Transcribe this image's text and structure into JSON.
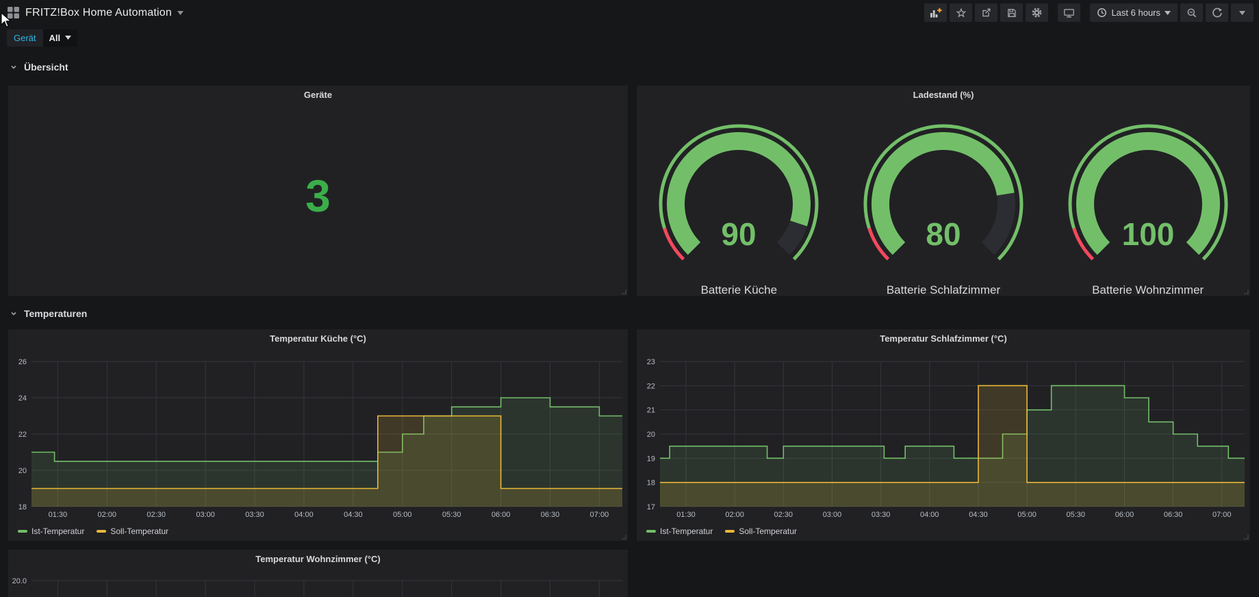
{
  "colors": {
    "green": "#73BF69",
    "red": "#F2495C",
    "yellow": "#EAB839",
    "stat_green": "#3BAD49",
    "variable_teal": "#33b5e5",
    "plus_orange": "#F5A32E",
    "panel_bg": "#212124",
    "page_bg": "#161719"
  },
  "navbar": {
    "title": "FRITZ!Box Home Automation",
    "time_range": "Last 6 hours",
    "icons": [
      "grid",
      "add-panel",
      "star",
      "share",
      "save",
      "settings",
      "tv",
      "clock",
      "zoom-out",
      "refresh",
      "dropdown-caret"
    ]
  },
  "variables": {
    "label": "Gerät",
    "value": "All"
  },
  "rows": [
    {
      "label": "Übersicht"
    },
    {
      "label": "Temperaturen"
    }
  ],
  "chart_data": [
    {
      "id": "geraete",
      "type": "stat",
      "title": "Geräte",
      "value": 3,
      "color": "#3BAD49"
    },
    {
      "id": "ladestand",
      "type": "gauge",
      "title": "Ladestand (%)",
      "min": 0,
      "max": 100,
      "threshold_red_until": 10,
      "gauge_color": "#73BF69",
      "threshold_color": "#F2495C",
      "gauges": [
        {
          "label": "Batterie Küche",
          "value": 90
        },
        {
          "label": "Batterie Schlafzimmer",
          "value": 80
        },
        {
          "label": "Batterie Wohnzimmer",
          "value": 100
        }
      ]
    },
    {
      "id": "kueche",
      "type": "line",
      "interpolation": "step-after",
      "title": "Temperatur Küche (°C)",
      "x_minutes_domain": [
        74,
        434
      ],
      "xticks": [
        {
          "t": 90,
          "label": "01:30"
        },
        {
          "t": 120,
          "label": "02:00"
        },
        {
          "t": 150,
          "label": "02:30"
        },
        {
          "t": 180,
          "label": "03:00"
        },
        {
          "t": 210,
          "label": "03:30"
        },
        {
          "t": 240,
          "label": "04:00"
        },
        {
          "t": 270,
          "label": "04:30"
        },
        {
          "t": 300,
          "label": "05:00"
        },
        {
          "t": 330,
          "label": "05:30"
        },
        {
          "t": 360,
          "label": "06:00"
        },
        {
          "t": 390,
          "label": "06:30"
        },
        {
          "t": 420,
          "label": "07:00"
        }
      ],
      "ylim": [
        18,
        26
      ],
      "yticks": [
        {
          "v": 18,
          "label": "18"
        },
        {
          "v": 20,
          "label": "20"
        },
        {
          "v": 22,
          "label": "22"
        },
        {
          "v": 24,
          "label": "24"
        },
        {
          "v": 26,
          "label": "26"
        }
      ],
      "series": [
        {
          "name": "Ist-Temperatur",
          "color": "#73BF69",
          "fill_opacity": 0.13,
          "points": [
            [
              74,
              21
            ],
            [
              88,
              20.5
            ],
            [
              285,
              21
            ],
            [
              300,
              22
            ],
            [
              313,
              23
            ],
            [
              330,
              23.5
            ],
            [
              360,
              24
            ],
            [
              390,
              23.5
            ],
            [
              420,
              23
            ]
          ]
        },
        {
          "name": "Soll-Temperatur",
          "color": "#EAB839",
          "fill_opacity": 0.16,
          "points": [
            [
              74,
              19
            ],
            [
              285,
              23
            ],
            [
              360,
              19
            ]
          ]
        }
      ],
      "legend": [
        "Ist-Temperatur",
        "Soll-Temperatur"
      ]
    },
    {
      "id": "schlafzimmer",
      "type": "line",
      "interpolation": "step-after",
      "title": "Temperatur Schlafzimmer (°C)",
      "x_minutes_domain": [
        74,
        434
      ],
      "xticks": [
        {
          "t": 90,
          "label": "01:30"
        },
        {
          "t": 120,
          "label": "02:00"
        },
        {
          "t": 150,
          "label": "02:30"
        },
        {
          "t": 180,
          "label": "03:00"
        },
        {
          "t": 210,
          "label": "03:30"
        },
        {
          "t": 240,
          "label": "04:00"
        },
        {
          "t": 270,
          "label": "04:30"
        },
        {
          "t": 300,
          "label": "05:00"
        },
        {
          "t": 330,
          "label": "05:30"
        },
        {
          "t": 360,
          "label": "06:00"
        },
        {
          "t": 390,
          "label": "06:30"
        },
        {
          "t": 420,
          "label": "07:00"
        }
      ],
      "ylim": [
        17,
        23
      ],
      "yticks": [
        {
          "v": 17,
          "label": "17"
        },
        {
          "v": 18,
          "label": "18"
        },
        {
          "v": 19,
          "label": "19"
        },
        {
          "v": 20,
          "label": "20"
        },
        {
          "v": 21,
          "label": "21"
        },
        {
          "v": 22,
          "label": "22"
        },
        {
          "v": 23,
          "label": "23"
        }
      ],
      "series": [
        {
          "name": "Ist-Temperatur",
          "color": "#73BF69",
          "fill_opacity": 0.13,
          "points": [
            [
              74,
              19
            ],
            [
              80,
              19.5
            ],
            [
              140,
              19
            ],
            [
              150,
              19.5
            ],
            [
              212,
              19
            ],
            [
              225,
              19.5
            ],
            [
              255,
              19
            ],
            [
              285,
              20
            ],
            [
              300,
              21
            ],
            [
              315,
              22
            ],
            [
              360,
              21.5
            ],
            [
              375,
              20.5
            ],
            [
              390,
              20
            ],
            [
              405,
              19.5
            ],
            [
              424,
              19
            ]
          ]
        },
        {
          "name": "Soll-Temperatur",
          "color": "#EAB839",
          "fill_opacity": 0.16,
          "points": [
            [
              74,
              18
            ],
            [
              270,
              22
            ],
            [
              300,
              18
            ]
          ]
        }
      ],
      "legend": [
        "Ist-Temperatur",
        "Soll-Temperatur"
      ]
    },
    {
      "id": "wohnzimmer",
      "type": "line",
      "interpolation": "step-after",
      "title": "Temperatur Wohnzimmer (°C)",
      "partial": true,
      "x_minutes_domain": [
        74,
        434
      ],
      "xticks": [
        {
          "t": 90
        },
        {
          "t": 120
        },
        {
          "t": 150
        },
        {
          "t": 180
        },
        {
          "t": 210
        },
        {
          "t": 240
        },
        {
          "t": 270
        },
        {
          "t": 300
        },
        {
          "t": 330
        },
        {
          "t": 360
        },
        {
          "t": 390
        },
        {
          "t": 420
        }
      ],
      "ylim": [
        19,
        20
      ],
      "yticks": [
        {
          "v": 20,
          "label": "20.0"
        }
      ],
      "series": []
    }
  ]
}
